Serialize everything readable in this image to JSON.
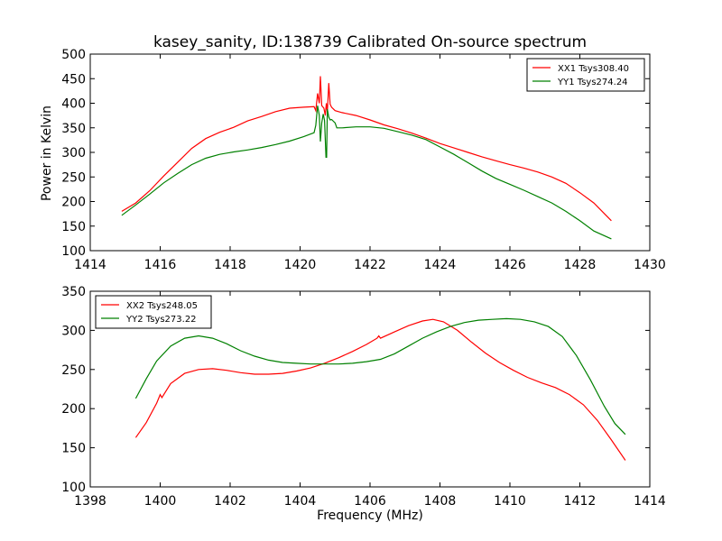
{
  "figure": {
    "title": "kasey_sanity, ID:138739 Calibrated On-source spectrum",
    "xlabel": "Frequency (MHz)",
    "ylabel": "Power in Kelvin"
  },
  "chart_data": [
    {
      "type": "line",
      "xlabel": "",
      "ylabel": "Power in Kelvin",
      "xlim": [
        1414,
        1430
      ],
      "ylim": [
        100,
        500
      ],
      "xticks": [
        1414,
        1416,
        1418,
        1420,
        1422,
        1424,
        1426,
        1428,
        1430
      ],
      "yticks": [
        100,
        150,
        200,
        250,
        300,
        350,
        400,
        450,
        500
      ],
      "legend_position": "top-right",
      "grid": false,
      "series": [
        {
          "name": "XX1 Tsys308.40",
          "color": "#ff0000",
          "points": [
            [
              1414.9,
              180
            ],
            [
              1415.3,
              197
            ],
            [
              1415.7,
              222
            ],
            [
              1416.1,
              252
            ],
            [
              1416.5,
              280
            ],
            [
              1416.9,
              308
            ],
            [
              1417.3,
              328
            ],
            [
              1417.7,
              341
            ],
            [
              1418.1,
              351
            ],
            [
              1418.5,
              364
            ],
            [
              1418.9,
              373
            ],
            [
              1419.3,
              383
            ],
            [
              1419.7,
              390
            ],
            [
              1420.1,
              392
            ],
            [
              1420.4,
              393
            ],
            [
              1420.45,
              385
            ],
            [
              1420.5,
              420
            ],
            [
              1420.55,
              400
            ],
            [
              1420.58,
              455
            ],
            [
              1420.62,
              395
            ],
            [
              1420.68,
              390
            ],
            [
              1420.72,
              375
            ],
            [
              1420.75,
              400
            ],
            [
              1420.78,
              382
            ],
            [
              1420.82,
              441
            ],
            [
              1420.86,
              398
            ],
            [
              1420.9,
              392
            ],
            [
              1421.0,
              385
            ],
            [
              1421.2,
              381
            ],
            [
              1421.6,
              375
            ],
            [
              1422.0,
              366
            ],
            [
              1422.4,
              356
            ],
            [
              1422.8,
              348
            ],
            [
              1423.2,
              339
            ],
            [
              1423.6,
              329
            ],
            [
              1424.0,
              318
            ],
            [
              1424.4,
              309
            ],
            [
              1424.8,
              300
            ],
            [
              1425.2,
              291
            ],
            [
              1425.6,
              283
            ],
            [
              1426.0,
              275
            ],
            [
              1426.4,
              268
            ],
            [
              1426.8,
              260
            ],
            [
              1427.2,
              250
            ],
            [
              1427.6,
              237
            ],
            [
              1428.0,
              218
            ],
            [
              1428.4,
              197
            ],
            [
              1428.9,
              161
            ]
          ]
        },
        {
          "name": "YY1 Tsys274.24",
          "color": "#008000",
          "points": [
            [
              1414.9,
              172
            ],
            [
              1415.3,
              193
            ],
            [
              1415.7,
              215
            ],
            [
              1416.1,
              238
            ],
            [
              1416.5,
              257
            ],
            [
              1416.9,
              275
            ],
            [
              1417.3,
              288
            ],
            [
              1417.7,
              296
            ],
            [
              1418.1,
              301
            ],
            [
              1418.5,
              305
            ],
            [
              1418.9,
              310
            ],
            [
              1419.3,
              316
            ],
            [
              1419.7,
              323
            ],
            [
              1420.1,
              332
            ],
            [
              1420.4,
              340
            ],
            [
              1420.45,
              355
            ],
            [
              1420.5,
              395
            ],
            [
              1420.55,
              375
            ],
            [
              1420.58,
              322
            ],
            [
              1420.62,
              360
            ],
            [
              1420.66,
              378
            ],
            [
              1420.7,
              365
            ],
            [
              1420.74,
              290
            ],
            [
              1420.76,
              290
            ],
            [
              1420.78,
              388
            ],
            [
              1420.82,
              372
            ],
            [
              1420.86,
              366
            ],
            [
              1420.9,
              367
            ],
            [
              1421.0,
              360
            ],
            [
              1421.05,
              350
            ],
            [
              1421.2,
              350
            ],
            [
              1421.6,
              352
            ],
            [
              1422.0,
              352
            ],
            [
              1422.4,
              349
            ],
            [
              1422.8,
              342
            ],
            [
              1423.2,
              335
            ],
            [
              1423.6,
              326
            ],
            [
              1424.0,
              311
            ],
            [
              1424.4,
              296
            ],
            [
              1424.8,
              279
            ],
            [
              1425.2,
              262
            ],
            [
              1425.6,
              247
            ],
            [
              1426.0,
              235
            ],
            [
              1426.4,
              223
            ],
            [
              1426.8,
              210
            ],
            [
              1427.2,
              197
            ],
            [
              1427.6,
              180
            ],
            [
              1428.0,
              161
            ],
            [
              1428.4,
              140
            ],
            [
              1428.9,
              124
            ]
          ]
        }
      ]
    },
    {
      "type": "line",
      "xlabel": "Frequency (MHz)",
      "ylabel": "",
      "xlim": [
        1398,
        1414
      ],
      "ylim": [
        100,
        350
      ],
      "xticks": [
        1398,
        1400,
        1402,
        1404,
        1406,
        1408,
        1410,
        1412,
        1414
      ],
      "yticks": [
        100,
        150,
        200,
        250,
        300,
        350
      ],
      "legend_position": "top-left",
      "grid": false,
      "series": [
        {
          "name": "XX2 Tsys248.05",
          "color": "#ff0000",
          "points": [
            [
              1399.3,
              163
            ],
            [
              1399.6,
              182
            ],
            [
              1399.9,
              207
            ],
            [
              1400.0,
              218
            ],
            [
              1400.05,
              214
            ],
            [
              1400.3,
              232
            ],
            [
              1400.7,
              245
            ],
            [
              1401.1,
              250
            ],
            [
              1401.5,
              251
            ],
            [
              1401.9,
              249
            ],
            [
              1402.3,
              246
            ],
            [
              1402.7,
              244
            ],
            [
              1403.1,
              244
            ],
            [
              1403.5,
              245
            ],
            [
              1403.9,
              248
            ],
            [
              1404.3,
              252
            ],
            [
              1404.7,
              258
            ],
            [
              1405.1,
              265
            ],
            [
              1405.5,
              273
            ],
            [
              1405.9,
              282
            ],
            [
              1406.2,
              290
            ],
            [
              1406.25,
              293
            ],
            [
              1406.3,
              290
            ],
            [
              1406.7,
              298
            ],
            [
              1407.1,
              306
            ],
            [
              1407.5,
              312
            ],
            [
              1407.8,
              314
            ],
            [
              1408.1,
              311
            ],
            [
              1408.5,
              300
            ],
            [
              1408.9,
              285
            ],
            [
              1409.3,
              271
            ],
            [
              1409.7,
              259
            ],
            [
              1410.1,
              249
            ],
            [
              1410.5,
              240
            ],
            [
              1410.9,
              233
            ],
            [
              1411.3,
              227
            ],
            [
              1411.7,
              218
            ],
            [
              1412.1,
              205
            ],
            [
              1412.5,
              185
            ],
            [
              1412.9,
              160
            ],
            [
              1413.3,
              134
            ]
          ]
        },
        {
          "name": "YY2 Tsys273.22",
          "color": "#008000",
          "points": [
            [
              1399.3,
              213
            ],
            [
              1399.6,
              238
            ],
            [
              1399.9,
              261
            ],
            [
              1400.3,
              280
            ],
            [
              1400.7,
              290
            ],
            [
              1401.1,
              293
            ],
            [
              1401.5,
              290
            ],
            [
              1401.9,
              283
            ],
            [
              1402.3,
              274
            ],
            [
              1402.7,
              267
            ],
            [
              1403.1,
              262
            ],
            [
              1403.5,
              259
            ],
            [
              1403.9,
              258
            ],
            [
              1404.3,
              257
            ],
            [
              1404.7,
              257
            ],
            [
              1405.1,
              257
            ],
            [
              1405.5,
              258
            ],
            [
              1405.9,
              260
            ],
            [
              1406.3,
              263
            ],
            [
              1406.7,
              270
            ],
            [
              1407.1,
              280
            ],
            [
              1407.5,
              290
            ],
            [
              1407.9,
              298
            ],
            [
              1408.3,
              305
            ],
            [
              1408.7,
              310
            ],
            [
              1409.1,
              313
            ],
            [
              1409.5,
              314
            ],
            [
              1409.9,
              315
            ],
            [
              1410.3,
              314
            ],
            [
              1410.7,
              311
            ],
            [
              1411.1,
              305
            ],
            [
              1411.5,
              292
            ],
            [
              1411.9,
              268
            ],
            [
              1412.3,
              237
            ],
            [
              1412.7,
              203
            ],
            [
              1413.0,
              181
            ],
            [
              1413.3,
              167
            ]
          ]
        }
      ]
    }
  ]
}
